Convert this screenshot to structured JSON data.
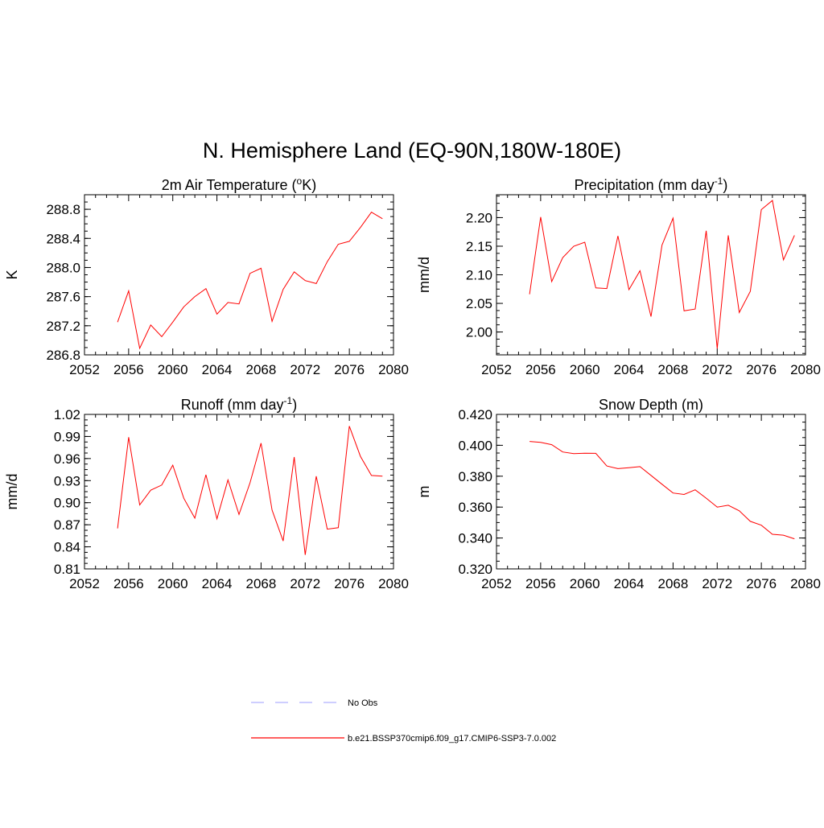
{
  "title": "N. Hemisphere Land (EQ-90N,180W-180E)",
  "colors": {
    "model": "#ff0000",
    "obs": "#b0b0ff",
    "axis": "#000000"
  },
  "legend": [
    {
      "label": "No Obs",
      "style": "dashed",
      "color": "#b0b0ff"
    },
    {
      "label": "b.e21.BSSP370cmip6.f09_g17.CMIP6-SSP3-7.0.002",
      "style": "solid",
      "color": "#ff0000"
    }
  ],
  "chart_data": [
    {
      "type": "line",
      "title": {
        "pre": "2m Air Temperature (",
        "sup": "o",
        "post": "K)"
      },
      "xlabel": "",
      "ylabel": "K",
      "xlim": [
        2052,
        2080
      ],
      "ylim": [
        286.8,
        289.0
      ],
      "xticks": [
        2052,
        2056,
        2060,
        2064,
        2068,
        2072,
        2076,
        2080
      ],
      "xtick_labels": [
        "2052",
        "2056",
        "2060",
        "2064",
        "2068",
        "2072",
        "2076",
        "2080"
      ],
      "yticks": [
        286.8,
        287.2,
        287.6,
        288.0,
        288.4,
        288.8
      ],
      "ytick_labels": [
        "286.8",
        "287.2",
        "287.6",
        "288.0",
        "288.4",
        "288.8"
      ],
      "grid": false,
      "x": [
        2055,
        2056,
        2057,
        2058,
        2059,
        2060,
        2061,
        2062,
        2063,
        2064,
        2065,
        2066,
        2067,
        2068,
        2069,
        2070,
        2071,
        2072,
        2073,
        2074,
        2075,
        2076,
        2077,
        2078,
        2079
      ],
      "series": [
        {
          "values": [
            287.25,
            287.68,
            286.89,
            287.21,
            287.05,
            287.25,
            287.46,
            287.6,
            287.71,
            287.36,
            287.52,
            287.5,
            287.92,
            287.99,
            287.26,
            287.7,
            287.94,
            287.82,
            287.78,
            288.08,
            288.32,
            288.36,
            288.55,
            288.76,
            288.67
          ]
        }
      ]
    },
    {
      "type": "line",
      "title": {
        "pre": "Precipitation (mm day",
        "sup": "-1",
        "post": ")"
      },
      "xlabel": "",
      "ylabel": "mm/d",
      "xlim": [
        2052,
        2080
      ],
      "ylim": [
        1.96,
        2.24
      ],
      "xticks": [
        2052,
        2056,
        2060,
        2064,
        2068,
        2072,
        2076,
        2080
      ],
      "xtick_labels": [
        "2052",
        "2056",
        "2060",
        "2064",
        "2068",
        "2072",
        "2076",
        "2080"
      ],
      "yticks": [
        2.0,
        2.05,
        2.1,
        2.15,
        2.2
      ],
      "ytick_labels": [
        "2.00",
        "2.05",
        "2.10",
        "2.15",
        "2.20"
      ],
      "grid": false,
      "x": [
        2055,
        2056,
        2057,
        2058,
        2059,
        2060,
        2061,
        2062,
        2063,
        2064,
        2065,
        2066,
        2067,
        2068,
        2069,
        2070,
        2071,
        2072,
        2073,
        2074,
        2075,
        2076,
        2077,
        2078,
        2079
      ],
      "series": [
        {
          "values": [
            2.066,
            2.201,
            2.088,
            2.13,
            2.15,
            2.157,
            2.077,
            2.076,
            2.168,
            2.074,
            2.107,
            2.027,
            2.152,
            2.199,
            2.037,
            2.04,
            2.177,
            1.971,
            2.169,
            2.034,
            2.071,
            2.214,
            2.23,
            2.126,
            2.169
          ]
        }
      ]
    },
    {
      "type": "line",
      "title": {
        "pre": "Runoff (mm day",
        "sup": "-1",
        "post": ")"
      },
      "xlabel": "",
      "ylabel": "mm/d",
      "xlim": [
        2052,
        2080
      ],
      "ylim": [
        0.81,
        1.02
      ],
      "xticks": [
        2052,
        2056,
        2060,
        2064,
        2068,
        2072,
        2076,
        2080
      ],
      "xtick_labels": [
        "2052",
        "2056",
        "2060",
        "2064",
        "2068",
        "2072",
        "2076",
        "2080"
      ],
      "yticks": [
        0.81,
        0.84,
        0.87,
        0.9,
        0.93,
        0.96,
        0.99,
        1.02
      ],
      "ytick_labels": [
        "0.81",
        "0.84",
        "0.87",
        "0.90",
        "0.93",
        "0.96",
        "0.99",
        "1.02"
      ],
      "grid": false,
      "x": [
        2055,
        2056,
        2057,
        2058,
        2059,
        2060,
        2061,
        2062,
        2063,
        2064,
        2065,
        2066,
        2067,
        2068,
        2069,
        2070,
        2071,
        2072,
        2073,
        2074,
        2075,
        2076,
        2077,
        2078,
        2079
      ],
      "series": [
        {
          "values": [
            0.865,
            0.989,
            0.897,
            0.917,
            0.924,
            0.951,
            0.906,
            0.879,
            0.938,
            0.878,
            0.931,
            0.884,
            0.927,
            0.981,
            0.89,
            0.848,
            0.962,
            0.829,
            0.936,
            0.864,
            0.866,
            1.004,
            0.963,
            0.937,
            0.936
          ]
        }
      ]
    },
    {
      "type": "line",
      "title": {
        "pre": "Snow Depth (m)",
        "sup": "",
        "post": ""
      },
      "xlabel": "",
      "ylabel": "m",
      "xlim": [
        2052,
        2080
      ],
      "ylim": [
        0.32,
        0.42
      ],
      "xticks": [
        2052,
        2056,
        2060,
        2064,
        2068,
        2072,
        2076,
        2080
      ],
      "xtick_labels": [
        "2052",
        "2056",
        "2060",
        "2064",
        "2068",
        "2072",
        "2076",
        "2080"
      ],
      "yticks": [
        0.32,
        0.34,
        0.36,
        0.38,
        0.4,
        0.42
      ],
      "ytick_labels": [
        "0.320",
        "0.340",
        "0.360",
        "0.380",
        "0.400",
        "0.420"
      ],
      "grid": false,
      "x": [
        2055,
        2056,
        2057,
        2058,
        2059,
        2060,
        2061,
        2062,
        2063,
        2064,
        2065,
        2066,
        2067,
        2068,
        2069,
        2070,
        2071,
        2072,
        2073,
        2074,
        2075,
        2076,
        2077,
        2078,
        2079
      ],
      "series": [
        {
          "values": [
            0.4025,
            0.4019,
            0.4004,
            0.3957,
            0.3946,
            0.3949,
            0.3948,
            0.3866,
            0.3849,
            0.3855,
            0.3862,
            0.3805,
            0.3748,
            0.3691,
            0.3682,
            0.3712,
            0.3658,
            0.36,
            0.3612,
            0.3576,
            0.3508,
            0.3483,
            0.3424,
            0.3418,
            0.3395
          ]
        }
      ]
    }
  ]
}
